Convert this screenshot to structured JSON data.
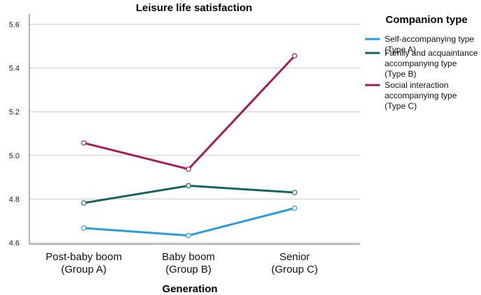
{
  "chart_data": {
    "type": "line",
    "title": "Leisure life satisfaction",
    "xlabel": "Generation",
    "ylabel": "",
    "categories": [
      [
        "Post-baby boom",
        "(Group A)"
      ],
      [
        "Baby boom",
        "(Group B)"
      ],
      [
        "Senior",
        "(Group C)"
      ]
    ],
    "ylim": [
      4.6,
      5.6
    ],
    "yticks": [
      "4.6",
      "4.8",
      "5.0",
      "5.2",
      "5.4",
      "5.6"
    ],
    "grid": true,
    "legend": {
      "title": "Companion type",
      "placement": "right"
    },
    "series": [
      {
        "name": [
          "Self-accompanying type",
          "(Type A)"
        ],
        "color": "#2b9be0",
        "values": [
          4.667,
          4.633,
          4.758
        ]
      },
      {
        "name": [
          "Family and acquaintance",
          "accompanying type",
          "(Type B)"
        ],
        "color": "#136660",
        "values": [
          4.782,
          4.861,
          4.83
        ]
      },
      {
        "name": [
          "Social interaction",
          "accompanying type",
          "(Type C)"
        ],
        "color": "#a11c56",
        "values": [
          5.057,
          4.937,
          5.456
        ]
      }
    ]
  }
}
